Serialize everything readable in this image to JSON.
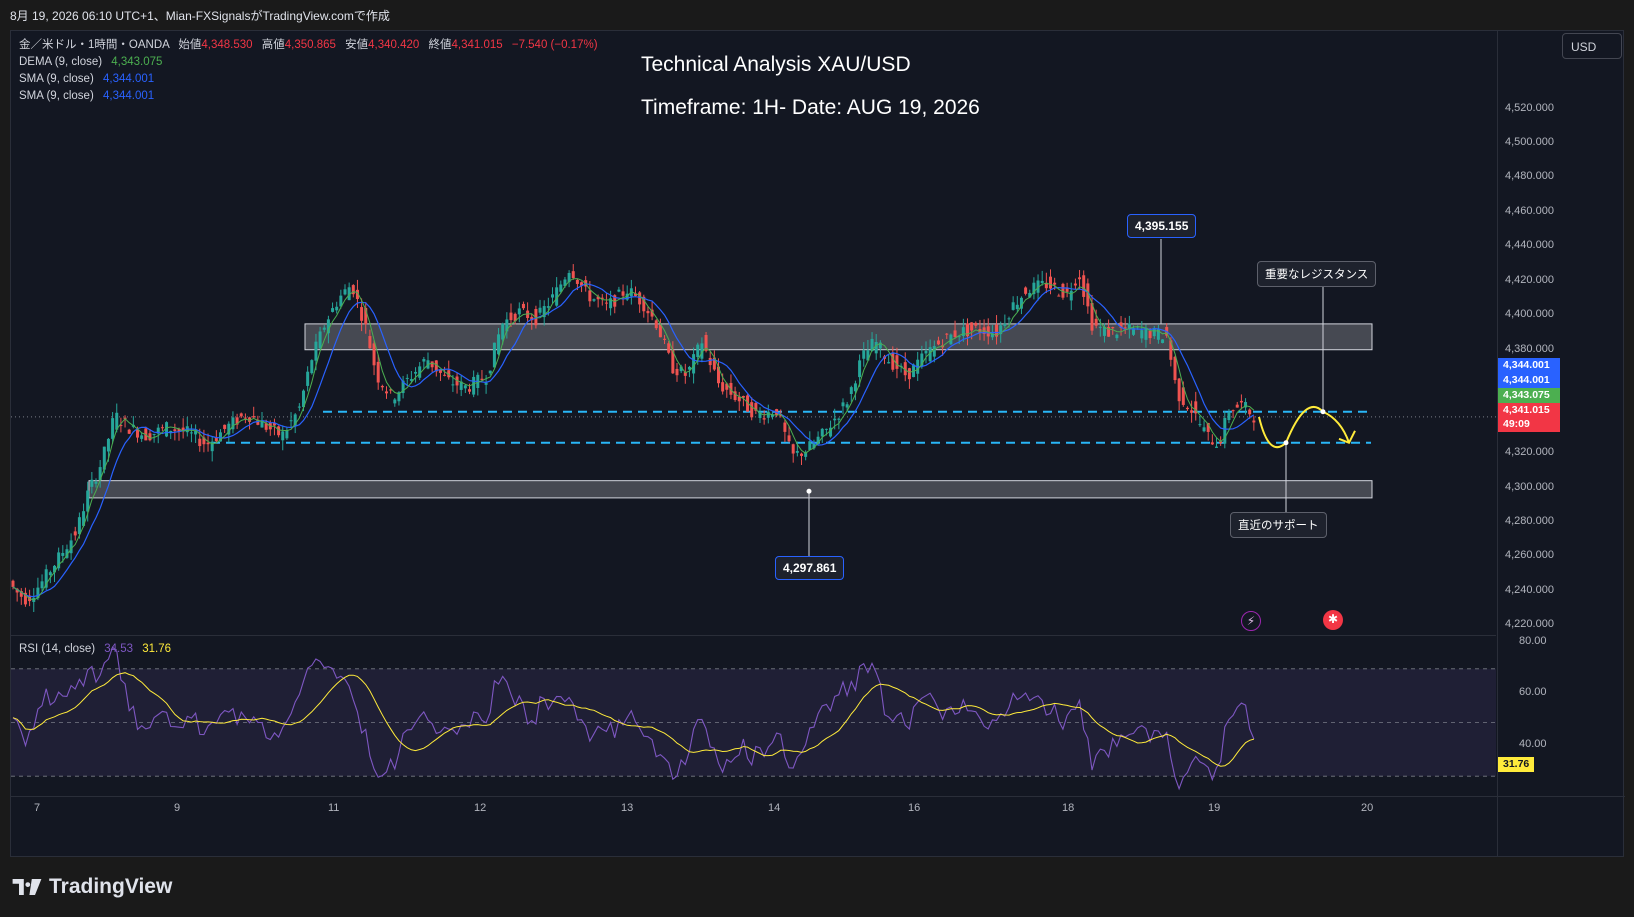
{
  "header": {
    "text": "8月 19, 2026 06:10 UTC+1、Mian-FXSignalsがTradingView.comで作成"
  },
  "currency": "USD",
  "legend": {
    "symbol_line": "金／米ドル・1時間・OANDA",
    "ohlc": [
      {
        "label": "始値",
        "value": "4,348.530"
      },
      {
        "label": "高値",
        "value": "4,350.865"
      },
      {
        "label": "安値",
        "value": "4,340.420"
      },
      {
        "label": "終値",
        "value": "4,341.015"
      }
    ],
    "change": "−7.540 (−0.17%)",
    "indicators": [
      {
        "name": "DEMA (9, close)",
        "value": "4,343.075",
        "color": "#4caf50"
      },
      {
        "name": "SMA (9, close)",
        "value": "4,344.001",
        "color": "#2962ff"
      },
      {
        "name": "SMA (9, close)",
        "value": "4,344.001",
        "color": "#2962ff"
      }
    ]
  },
  "overlay": {
    "title": "Technical Analysis XAU/USD",
    "subtitle": "Timeframe: 1H- Date: AUG 19, 2026"
  },
  "annotations": {
    "high_label": "4,395.155",
    "low_label": "4,297.861",
    "resistance_label": "重要なレジスタンス",
    "support_label": "直近のサポート"
  },
  "price_tags": [
    {
      "text": "4,344.001",
      "color": "#2962ff",
      "price": 4344.001
    },
    {
      "text": "4,344.001",
      "color": "#2962ff",
      "price": 4344.001
    },
    {
      "text": "4,343.075",
      "color": "#4caf50",
      "price": 4343.075
    },
    {
      "text": "4,341.015",
      "color": "#f23645",
      "price": 4341.015
    },
    {
      "text": "49:09",
      "color": "#f23645",
      "price": 4341.015
    }
  ],
  "rsi": {
    "title": "RSI (14, close)",
    "value": "34.53",
    "ma_value": "31.76",
    "axis_ticks": [
      "80.00",
      "60.00",
      "40.00"
    ],
    "tag_value": "31.76",
    "overbought": 70,
    "middle": 50,
    "oversold": 30
  },
  "footer": {
    "brand": "TradingView"
  },
  "chart_data": {
    "type": "candlestick",
    "symbol": "XAU/USD",
    "timeframe": "1H",
    "y_axis_ticks": [
      "4,520.000",
      "4,500.000",
      "4,480.000",
      "4,460.000",
      "4,440.000",
      "4,420.000",
      "4,400.000",
      "4,380.000",
      "4,320.000",
      "4,300.000",
      "4,280.000",
      "4,260.000",
      "4,240.000",
      "4,220.000"
    ],
    "y_tick_values": [
      4520,
      4500,
      4480,
      4460,
      4440,
      4420,
      4400,
      4380,
      4320,
      4300,
      4280,
      4260,
      4240,
      4220
    ],
    "x_axis_ticks": [
      "7",
      "9",
      "11",
      "12",
      "13",
      "14",
      "16",
      "18",
      "19",
      "20"
    ],
    "ylim": [
      4215,
      4565
    ],
    "resistance_zone": [
      4380,
      4395
    ],
    "support_zone": [
      4294,
      4304
    ],
    "dashed_levels": [
      4344.0,
      4326.0
    ],
    "swing_high": 4395.155,
    "swing_low": 4297.861,
    "price_path": [
      [
        0,
        4248
      ],
      [
        8,
        4240
      ],
      [
        20,
        4235
      ],
      [
        35,
        4245
      ],
      [
        55,
        4262
      ],
      [
        70,
        4275
      ],
      [
        80,
        4295
      ],
      [
        95,
        4315
      ],
      [
        108,
        4342
      ],
      [
        122,
        4335
      ],
      [
        140,
        4330
      ],
      [
        160,
        4335
      ],
      [
        180,
        4332
      ],
      [
        200,
        4325
      ],
      [
        220,
        4335
      ],
      [
        240,
        4343
      ],
      [
        260,
        4335
      ],
      [
        275,
        4330
      ],
      [
        292,
        4345
      ],
      [
        305,
        4375
      ],
      [
        318,
        4395
      ],
      [
        332,
        4410
      ],
      [
        345,
        4418
      ],
      [
        358,
        4395
      ],
      [
        370,
        4365
      ],
      [
        385,
        4352
      ],
      [
        400,
        4362
      ],
      [
        420,
        4375
      ],
      [
        440,
        4362
      ],
      [
        460,
        4358
      ],
      [
        480,
        4365
      ],
      [
        495,
        4395
      ],
      [
        512,
        4402
      ],
      [
        530,
        4398
      ],
      [
        548,
        4412
      ],
      [
        563,
        4428
      ],
      [
        580,
        4412
      ],
      [
        600,
        4405
      ],
      [
        620,
        4415
      ],
      [
        635,
        4408
      ],
      [
        650,
        4395
      ],
      [
        665,
        4370
      ],
      [
        680,
        4365
      ],
      [
        695,
        4385
      ],
      [
        712,
        4360
      ],
      [
        730,
        4352
      ],
      [
        750,
        4342
      ],
      [
        770,
        4345
      ],
      [
        785,
        4318
      ],
      [
        800,
        4322
      ],
      [
        818,
        4332
      ],
      [
        840,
        4350
      ],
      [
        855,
        4375
      ],
      [
        868,
        4385
      ],
      [
        880,
        4375
      ],
      [
        900,
        4365
      ],
      [
        920,
        4378
      ],
      [
        935,
        4385
      ],
      [
        950,
        4390
      ],
      [
        970,
        4392
      ],
      [
        990,
        4390
      ],
      [
        1005,
        4405
      ],
      [
        1020,
        4415
      ],
      [
        1040,
        4418
      ],
      [
        1060,
        4412
      ],
      [
        1072,
        4425
      ],
      [
        1085,
        4395
      ],
      [
        1100,
        4390
      ],
      [
        1120,
        4392
      ],
      [
        1140,
        4390
      ],
      [
        1160,
        4388
      ],
      [
        1170,
        4355
      ],
      [
        1185,
        4345
      ],
      [
        1200,
        4330
      ],
      [
        1212,
        4325
      ],
      [
        1222,
        4345
      ],
      [
        1235,
        4348
      ],
      [
        1248,
        4341
      ]
    ],
    "projection": [
      [
        1248,
        4341
      ],
      [
        1275,
        4326
      ],
      [
        1312,
        4344
      ],
      [
        1338,
        4326
      ]
    ],
    "dema_value": 4343.075,
    "sma_value": 4344.001,
    "close": 4341.015
  }
}
